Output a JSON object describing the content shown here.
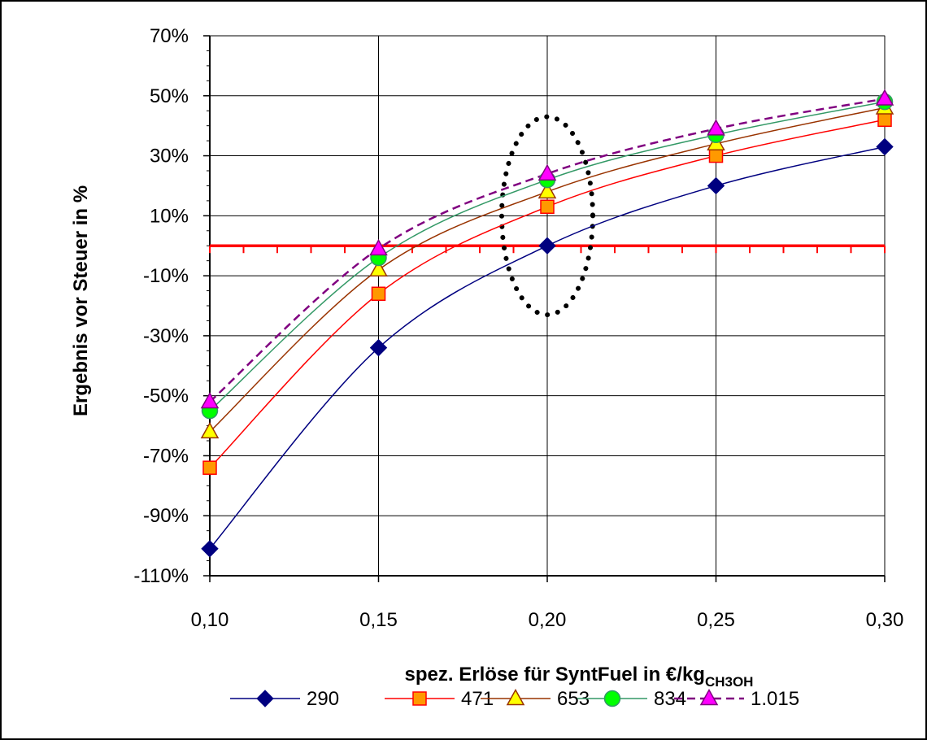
{
  "chart_data": {
    "type": "line",
    "xlabel": "spez. Erlöse für SyntFuel in €/kg",
    "xlabel_subscript": "CH3OH",
    "ylabel": "Ergebnis vor Steuer in %",
    "x": [
      0.1,
      0.15,
      0.2,
      0.25,
      0.3
    ],
    "x_tick_labels": [
      "0,10",
      "0,15",
      "0,20",
      "0,25",
      "0,30"
    ],
    "xlim": [
      0.1,
      0.3
    ],
    "ylim": [
      -110,
      70
    ],
    "y_ticks": [
      -110,
      -90,
      -70,
      -50,
      -30,
      -10,
      10,
      30,
      50,
      70
    ],
    "y_tick_labels": [
      "-110%",
      "-90%",
      "-70%",
      "-50%",
      "-30%",
      "-10%",
      "10%",
      "30%",
      "50%",
      "70%"
    ],
    "grid": true,
    "legend_position": "bottom",
    "reference_line": {
      "y": 0,
      "color": "#ff0000"
    },
    "annotation": {
      "shape": "dotted-ellipse",
      "x": 0.2,
      "y_range": [
        -23,
        43
      ]
    },
    "series": [
      {
        "name": "290",
        "values": [
          -101,
          -34,
          0,
          20,
          33
        ],
        "color": "#000080",
        "marker": "diamond",
        "marker_fill": "#000080",
        "dash": "solid"
      },
      {
        "name": "471",
        "values": [
          -74,
          -16,
          13,
          30,
          42
        ],
        "color": "#ff0000",
        "marker": "square",
        "marker_fill": "#ff9900",
        "dash": "solid"
      },
      {
        "name": "653",
        "values": [
          -62,
          -8,
          18,
          34,
          46
        ],
        "color": "#993300",
        "marker": "triangle",
        "marker_fill": "#ffff00",
        "dash": "solid"
      },
      {
        "name": "834",
        "values": [
          -55,
          -4,
          22,
          37,
          48
        ],
        "color": "#339966",
        "marker": "circle",
        "marker_fill": "#00ff00",
        "dash": "solid"
      },
      {
        "name": "1.015",
        "values": [
          -52,
          -1,
          24,
          39,
          49
        ],
        "color": "#800080",
        "marker": "triangle",
        "marker_fill": "#ff00ff",
        "dash": "dashed"
      }
    ]
  }
}
